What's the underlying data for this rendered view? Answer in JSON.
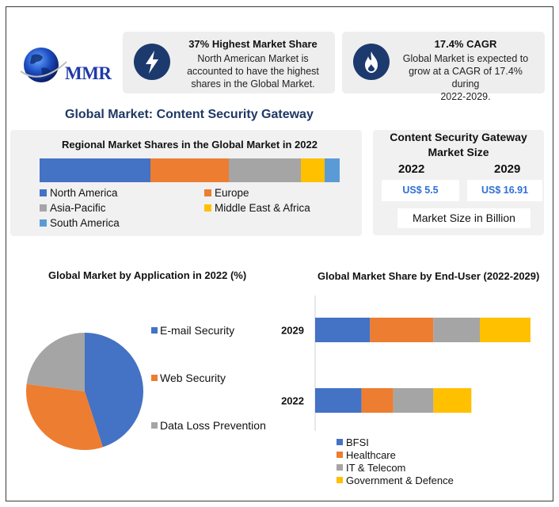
{
  "logo": {
    "text": "MMR"
  },
  "kpis": [
    {
      "title": "37% Highest Market Share",
      "desc": [
        "North American Market is",
        "accounted to have the highest",
        "shares in the Global Market."
      ],
      "icon": "lightning-icon"
    },
    {
      "title": "17.4% CAGR",
      "desc": [
        "Global Market is expected to",
        "grow at a CAGR of 17.4% during",
        "2022-2029."
      ],
      "icon": "flame-icon"
    }
  ],
  "main_title": "Global Market: Content Security Gateway",
  "regional": {
    "title": "Regional Market Shares in the Global Market in 2022"
  },
  "market_size": {
    "title_line1": "Content Security Gateway",
    "title_line2": "Market Size",
    "year_2022": "2022",
    "year_2029": "2029",
    "value_2022": "US$ 5.5",
    "value_2029": "US$ 16.91",
    "unit": "Market Size in Billion"
  },
  "application": {
    "title": "Global Market by Application in 2022 (%)"
  },
  "end_user": {
    "title": "Global Market Share by End-User (2022-2029)"
  },
  "colors": {
    "blue": "#4472c4",
    "orange": "#ed7d31",
    "gray": "#a5a5a5",
    "yellow": "#ffc000",
    "lightblue": "#5b9bd5",
    "navy": "#1d3a6e",
    "title_blue": "#1f3864",
    "value_blue": "#2e6fd8"
  },
  "chart_data": [
    {
      "type": "bar",
      "orientation": "horizontal-stacked",
      "title": "Regional Market Shares in the Global Market in 2022",
      "categories": [
        "2022"
      ],
      "series": [
        {
          "name": "North America",
          "values": [
            37
          ]
        },
        {
          "name": "Europe",
          "values": [
            26
          ]
        },
        {
          "name": "Asia-Pacific",
          "values": [
            24
          ]
        },
        {
          "name": "Middle East & Africa",
          "values": [
            8
          ]
        },
        {
          "name": "South America",
          "values": [
            5
          ]
        }
      ],
      "legend": "bottom"
    },
    {
      "type": "pie",
      "title": "Global Market by Application in 2022 (%)",
      "categories": [
        "E-mail Security",
        "Web Security",
        "Data Loss Prevention"
      ],
      "values": [
        45,
        32,
        23
      ],
      "legend": "right"
    },
    {
      "type": "bar",
      "orientation": "horizontal-stacked",
      "title": "Global Market Share by End-User (2022-2029)",
      "categories": [
        "2029",
        "2022"
      ],
      "series": [
        {
          "name": "BFSI",
          "values": [
            26,
            22
          ]
        },
        {
          "name": "Healthcare",
          "values": [
            30,
            15
          ]
        },
        {
          "name": "IT & Telecom",
          "values": [
            22,
            19
          ]
        },
        {
          "name": "Government & Defence",
          "values": [
            24,
            18
          ]
        }
      ],
      "xlim": [
        0,
        102
      ],
      "legend": "bottom"
    }
  ]
}
